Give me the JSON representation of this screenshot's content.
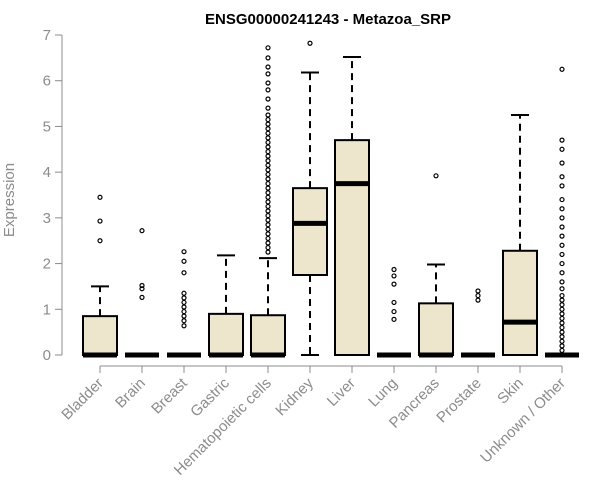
{
  "chart_data": {
    "type": "box",
    "title": "ENSG00000241243 - Metazoa_SRP",
    "xlabel": "",
    "ylabel": "Expression",
    "ylim": [
      0,
      7
    ],
    "yticks": [
      0,
      1,
      2,
      3,
      4,
      5,
      6,
      7
    ],
    "box_fill": "#ede6cc",
    "box_stroke": "#000000",
    "axis_color": "#8c8c8c",
    "categories": [
      "Bladder",
      "Brain",
      "Breast",
      "Gastric",
      "Hematopoietic cells",
      "Kidney",
      "Liver",
      "Lung",
      "Pancreas",
      "Prostate",
      "Skin",
      "Unknown / Other"
    ],
    "boxes": [
      {
        "name": "Bladder",
        "q1": 0,
        "median": 0,
        "q3": 0.85,
        "whisker_low": 0,
        "whisker_high": 1.5,
        "outliers": [
          2.5,
          2.93,
          3.45
        ]
      },
      {
        "name": "Brain",
        "q1": 0,
        "median": 0,
        "q3": 0,
        "whisker_low": 0,
        "whisker_high": 0,
        "outliers": [
          1.26,
          1.45,
          1.52,
          2.72
        ]
      },
      {
        "name": "Breast",
        "q1": 0,
        "median": 0,
        "q3": 0,
        "whisker_low": 0,
        "whisker_high": 0,
        "outliers": [
          0.64,
          0.75,
          0.85,
          0.95,
          1.05,
          1.15,
          1.25,
          1.35,
          1.8,
          2.05,
          2.26
        ]
      },
      {
        "name": "Gastric",
        "q1": 0,
        "median": 0,
        "q3": 0.9,
        "whisker_low": 0,
        "whisker_high": 2.18,
        "outliers": []
      },
      {
        "name": "Hematopoietic cells",
        "q1": 0,
        "median": 0,
        "q3": 0.87,
        "whisker_low": 0,
        "whisker_high": 2.12,
        "outliers": [
          2.25,
          2.35,
          2.45,
          2.55,
          2.65,
          2.75,
          2.85,
          2.95,
          3.05,
          3.15,
          3.25,
          3.35,
          3.45,
          3.55,
          3.65,
          3.75,
          3.85,
          3.95,
          4.05,
          4.15,
          4.25,
          4.35,
          4.45,
          4.55,
          4.65,
          4.75,
          4.85,
          4.95,
          5.05,
          5.15,
          5.25,
          5.4,
          5.6,
          5.8,
          5.95,
          6.15,
          6.3,
          6.5,
          6.72
        ]
      },
      {
        "name": "Kidney",
        "q1": 1.75,
        "median": 2.88,
        "q3": 3.65,
        "whisker_low": 0,
        "whisker_high": 6.18,
        "outliers": [
          6.82
        ]
      },
      {
        "name": "Liver",
        "q1": 0,
        "median": 3.75,
        "q3": 4.7,
        "whisker_low": 0,
        "whisker_high": 6.52,
        "outliers": []
      },
      {
        "name": "Lung",
        "q1": 0,
        "median": 0,
        "q3": 0,
        "whisker_low": 0,
        "whisker_high": 0,
        "outliers": [
          0.78,
          0.95,
          1.15,
          1.55,
          1.73,
          1.87
        ]
      },
      {
        "name": "Pancreas",
        "q1": 0,
        "median": 0,
        "q3": 1.13,
        "whisker_low": 0,
        "whisker_high": 1.98,
        "outliers": [
          3.92
        ]
      },
      {
        "name": "Prostate",
        "q1": 0,
        "median": 0,
        "q3": 0,
        "whisker_low": 0,
        "whisker_high": 0,
        "outliers": [
          1.2,
          1.3,
          1.4
        ]
      },
      {
        "name": "Skin",
        "q1": 0,
        "median": 0.72,
        "q3": 2.28,
        "whisker_low": 0,
        "whisker_high": 5.25,
        "outliers": []
      },
      {
        "name": "Unknown / Other",
        "q1": 0,
        "median": 0,
        "q3": 0,
        "whisker_low": 0,
        "whisker_high": 0,
        "outliers": [
          0.1,
          0.2,
          0.3,
          0.4,
          0.5,
          0.6,
          0.7,
          0.8,
          0.9,
          1.0,
          1.1,
          1.2,
          1.3,
          1.45,
          1.6,
          1.8,
          2.0,
          2.2,
          2.4,
          2.6,
          2.8,
          3.0,
          3.2,
          3.4,
          3.7,
          3.9,
          4.2,
          4.5,
          4.7,
          6.25
        ]
      }
    ]
  }
}
